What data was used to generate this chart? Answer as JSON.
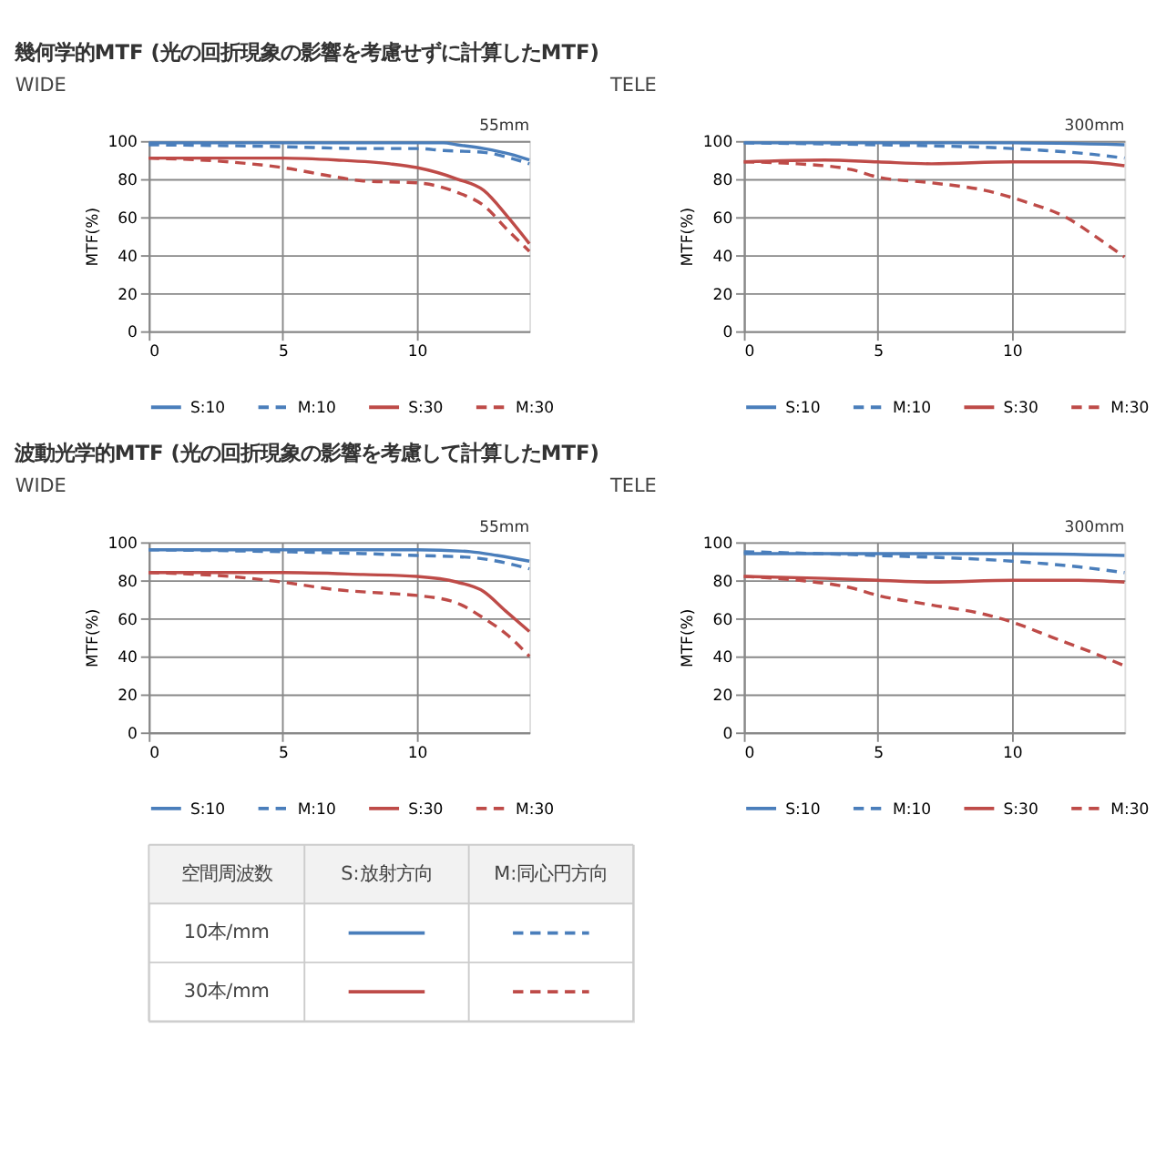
{
  "chart_data": [
    {
      "type": "line",
      "title": "幾何学的MTF (光の回折現象の影響を考慮せずに計算したMTF)",
      "subtitle": "WIDE",
      "ylabel": "MTF(%)",
      "annotations": [
        "55mm"
      ],
      "xlim": [
        0,
        14.2
      ],
      "xticks": [
        0,
        5,
        10
      ],
      "ylim": [
        0,
        100
      ],
      "yticks": [
        0,
        20,
        40,
        60,
        80,
        100
      ],
      "grid": true,
      "legend": "bottom",
      "series": [
        {
          "name": "S:10",
          "color": "#4a7ebb",
          "line_style": "solid",
          "x": [
            0,
            5,
            10,
            11,
            11.5,
            12.5,
            13.5,
            14.2
          ],
          "values": [
            99,
            99,
            99,
            99,
            98,
            96,
            93,
            90
          ]
        },
        {
          "name": "M:10",
          "color": "#4a7ebb",
          "line_style": "dashed",
          "x": [
            0,
            5,
            8,
            10,
            11,
            12.5,
            13.5,
            14.2
          ],
          "values": [
            98,
            97,
            96,
            96,
            95,
            94,
            91,
            88
          ]
        },
        {
          "name": "S:30",
          "color": "#be4b48",
          "line_style": "solid",
          "x": [
            0,
            5,
            7,
            9,
            10,
            11.5,
            12.5,
            13.4,
            14.2
          ],
          "values": [
            91,
            91,
            90,
            88,
            86,
            80,
            74,
            60,
            46
          ]
        },
        {
          "name": "M:30",
          "color": "#be4b48",
          "line_style": "dashed",
          "x": [
            0,
            3,
            5,
            7,
            8,
            10,
            11.5,
            12.5,
            13.4,
            14.2
          ],
          "values": [
            91,
            89,
            86,
            81,
            79,
            78,
            73,
            66,
            53,
            42
          ]
        }
      ]
    },
    {
      "type": "line",
      "title": "TELE",
      "ylabel": "MTF(%)",
      "annotations": [
        "300mm"
      ],
      "xlim": [
        0,
        14.2
      ],
      "xticks": [
        0,
        5,
        10
      ],
      "ylim": [
        0,
        100
      ],
      "yticks": [
        0,
        20,
        40,
        60,
        80,
        100
      ],
      "grid": true,
      "legend": "bottom",
      "series": [
        {
          "name": "S:10",
          "color": "#4a7ebb",
          "line_style": "solid",
          "x": [
            0,
            5,
            10,
            14.2
          ],
          "values": [
            99,
            99,
            99,
            98
          ]
        },
        {
          "name": "M:10",
          "color": "#4a7ebb",
          "line_style": "dashed",
          "x": [
            0,
            5,
            10,
            13,
            14.2
          ],
          "values": [
            99,
            98,
            96,
            93,
            91
          ]
        },
        {
          "name": "S:30",
          "color": "#be4b48",
          "line_style": "solid",
          "x": [
            0,
            3,
            5,
            7,
            10,
            12.5,
            14.2
          ],
          "values": [
            89,
            90,
            89,
            88,
            89,
            89,
            87
          ]
        },
        {
          "name": "M:30",
          "color": "#be4b48",
          "line_style": "dashed",
          "x": [
            0,
            2,
            4,
            5,
            7,
            9,
            10.5,
            12,
            13.3,
            14.2
          ],
          "values": [
            89,
            88,
            85,
            81,
            78,
            74,
            68,
            60,
            48,
            39
          ]
        }
      ]
    },
    {
      "type": "line",
      "title": "波動光学的MTF (光の回折現象の影響を考慮して計算したMTF)",
      "subtitle": "WIDE",
      "ylabel": "MTF(%)",
      "annotations": [
        "55mm"
      ],
      "xlim": [
        0,
        14.2
      ],
      "xticks": [
        0,
        5,
        10
      ],
      "ylim": [
        0,
        100
      ],
      "yticks": [
        0,
        20,
        40,
        60,
        80,
        100
      ],
      "grid": true,
      "legend": "bottom",
      "series": [
        {
          "name": "S:10",
          "color": "#4a7ebb",
          "line_style": "solid",
          "x": [
            0,
            5,
            10,
            12,
            13,
            14.2
          ],
          "values": [
            96,
            96,
            96,
            95,
            93,
            90
          ]
        },
        {
          "name": "M:10",
          "color": "#4a7ebb",
          "line_style": "dashed",
          "x": [
            0,
            5,
            8,
            10,
            12,
            13,
            14.2
          ],
          "values": [
            96,
            95,
            94,
            93,
            92,
            90,
            86
          ]
        },
        {
          "name": "S:30",
          "color": "#be4b48",
          "line_style": "solid",
          "x": [
            0,
            5,
            8,
            10,
            11.5,
            12.5,
            13.3,
            14.2
          ],
          "values": [
            84,
            84,
            83,
            82,
            79,
            74,
            64,
            53
          ]
        },
        {
          "name": "M:30",
          "color": "#be4b48",
          "line_style": "dashed",
          "x": [
            0,
            3,
            5,
            7,
            9,
            10,
            11.5,
            12.5,
            13.4,
            14.2
          ],
          "values": [
            84,
            82,
            79,
            75,
            73,
            72,
            68,
            60,
            51,
            40
          ]
        }
      ]
    },
    {
      "type": "line",
      "title": "TELE",
      "ylabel": "MTF(%)",
      "annotations": [
        "300mm"
      ],
      "xlim": [
        0,
        14.2
      ],
      "xticks": [
        0,
        5,
        10
      ],
      "ylim": [
        0,
        100
      ],
      "yticks": [
        0,
        20,
        40,
        60,
        80,
        100
      ],
      "grid": true,
      "legend": "bottom",
      "series": [
        {
          "name": "S:10",
          "color": "#4a7ebb",
          "line_style": "solid",
          "x": [
            0,
            5,
            10,
            14.2
          ],
          "values": [
            94,
            94,
            94,
            93
          ]
        },
        {
          "name": "M:10",
          "color": "#4a7ebb",
          "line_style": "dashed",
          "x": [
            0,
            5,
            10,
            12.5,
            14.2
          ],
          "values": [
            95,
            93,
            90,
            87,
            84
          ]
        },
        {
          "name": "S:30",
          "color": "#be4b48",
          "line_style": "solid",
          "x": [
            0,
            3,
            5,
            7,
            10,
            12.5,
            14.2
          ],
          "values": [
            82,
            81,
            80,
            79,
            80,
            80,
            79
          ]
        },
        {
          "name": "M:30",
          "color": "#be4b48",
          "line_style": "dashed",
          "x": [
            0,
            2,
            4,
            5,
            7,
            9,
            10,
            11.5,
            13,
            14.2
          ],
          "values": [
            82,
            80,
            76,
            72,
            67,
            62,
            58,
            50,
            42,
            35
          ]
        }
      ]
    },
    {
      "type": "other",
      "annotations": [
        "空間周波数",
        "S:放射方向",
        "M:同心円方向",
        "10本/mm",
        "30本/mm"
      ]
    }
  ]
}
